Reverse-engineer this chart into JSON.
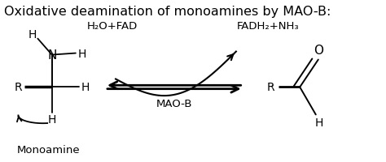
{
  "title": "Oxidative deamination of monoamines by MAO-B:",
  "title_fontsize": 11.5,
  "background_color": "#ffffff",
  "figsize": [
    4.74,
    2.01
  ],
  "dpi": 100,
  "monoamine_label": "Monoamine",
  "maob_label": "MAO-B",
  "h2o_fad_label": "H₂O+FAD",
  "fadh2_nh3_label": "FADH₂+NH₃",
  "font_size_labels": 9.5,
  "font_size_atoms": 10,
  "font_size_title": 11.5
}
